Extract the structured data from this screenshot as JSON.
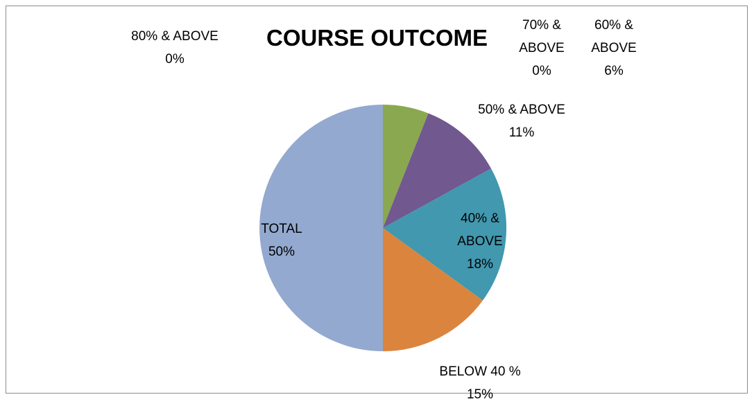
{
  "chart_data": {
    "type": "pie",
    "title": "COURSE OUTCOME",
    "categories": [
      "80% & ABOVE",
      "70% & ABOVE",
      "60% & ABOVE",
      "50% & ABOVE",
      "40% & ABOVE",
      "BELOW 40 %",
      "TOTAL"
    ],
    "values": [
      0,
      0,
      6,
      11,
      18,
      15,
      50
    ],
    "value_labels": [
      "0%",
      "0%",
      "6%",
      "11%",
      "18%",
      "15%",
      "50%"
    ],
    "colors": [
      "#4f81bd",
      "#c0504d",
      "#8aa84f",
      "#71588f",
      "#4198af",
      "#db843d",
      "#93a9cf"
    ]
  }
}
